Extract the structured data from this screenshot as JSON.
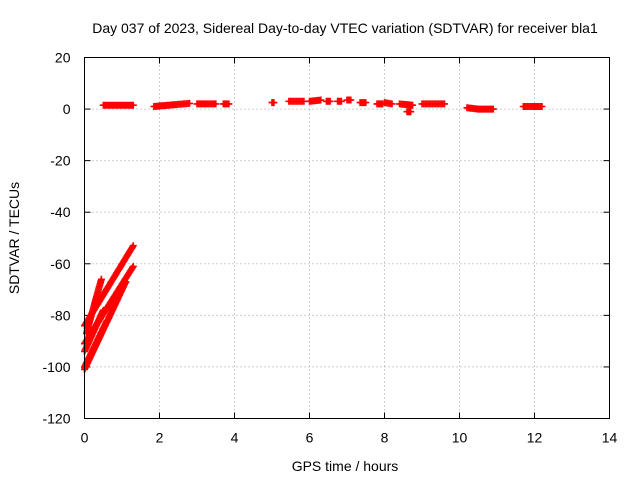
{
  "chart_data": {
    "type": "scatter",
    "title": "Day 037 of 2023, Sidereal Day-to-day VTEC variation (SDTVAR) for receiver bla1",
    "xlabel": "GPS time / hours",
    "ylabel": "SDTVAR / TECUs",
    "xlim": [
      0,
      14
    ],
    "ylim": [
      -120,
      20
    ],
    "x_ticks": [
      0,
      2,
      4,
      6,
      8,
      10,
      12,
      14
    ],
    "y_ticks": [
      -120,
      -100,
      -80,
      -60,
      -40,
      -20,
      0,
      20
    ],
    "grid": true,
    "marker": "plus",
    "color": "#ff0000",
    "segments": [
      {
        "x": [
          0.5,
          1.3
        ],
        "y": [
          1.5,
          1.5
        ]
      },
      {
        "x": [
          1.85,
          2.8
        ],
        "y": [
          1.0,
          2.2
        ]
      },
      {
        "x": [
          3.0,
          3.5
        ],
        "y": [
          2.0,
          2.0
        ]
      },
      {
        "x": [
          3.7,
          3.85
        ],
        "y": [
          2.0,
          2.0
        ]
      },
      {
        "x": [
          5.0,
          5.05
        ],
        "y": [
          2.5,
          2.5
        ]
      },
      {
        "x": [
          5.45,
          5.85
        ],
        "y": [
          3.0,
          3.0
        ]
      },
      {
        "x": [
          6.0,
          6.3
        ],
        "y": [
          3.0,
          3.5
        ]
      },
      {
        "x": [
          6.45,
          6.55
        ],
        "y": [
          3.0,
          3.0
        ]
      },
      {
        "x": [
          6.75,
          6.85
        ],
        "y": [
          3.0,
          3.0
        ]
      },
      {
        "x": [
          7.0,
          7.1
        ],
        "y": [
          3.5,
          3.5
        ]
      },
      {
        "x": [
          7.35,
          7.5
        ],
        "y": [
          2.5,
          2.5
        ]
      },
      {
        "x": [
          7.8,
          7.95
        ],
        "y": [
          2.0,
          2.0
        ]
      },
      {
        "x": [
          8.0,
          8.2
        ],
        "y": [
          2.5,
          2.0
        ]
      },
      {
        "x": [
          8.4,
          8.75
        ],
        "y": [
          2.0,
          1.5
        ]
      },
      {
        "x": [
          8.6,
          8.7
        ],
        "y": [
          -1.0,
          -1.0
        ]
      },
      {
        "x": [
          9.0,
          9.6
        ],
        "y": [
          2.0,
          2.0
        ]
      },
      {
        "x": [
          10.2,
          10.5
        ],
        "y": [
          0.5,
          0.0
        ]
      },
      {
        "x": [
          10.5,
          10.9
        ],
        "y": [
          0.0,
          0.0
        ]
      },
      {
        "x": [
          11.7,
          12.2
        ],
        "y": [
          1.0,
          1.0
        ]
      },
      {
        "x": [
          0.0,
          1.3
        ],
        "y": [
          -84,
          -53
        ]
      },
      {
        "x": [
          0.0,
          1.3
        ],
        "y": [
          -91,
          -61
        ]
      },
      {
        "x": [
          0.0,
          1.1
        ],
        "y": [
          -101,
          -67
        ]
      },
      {
        "x": [
          0.05,
          0.45
        ],
        "y": [
          -87,
          -66
        ]
      },
      {
        "x": [
          0.0,
          0.5
        ],
        "y": [
          -94,
          -78
        ]
      },
      {
        "x": [
          0.0,
          0.6
        ],
        "y": [
          -100,
          -82
        ]
      }
    ]
  }
}
